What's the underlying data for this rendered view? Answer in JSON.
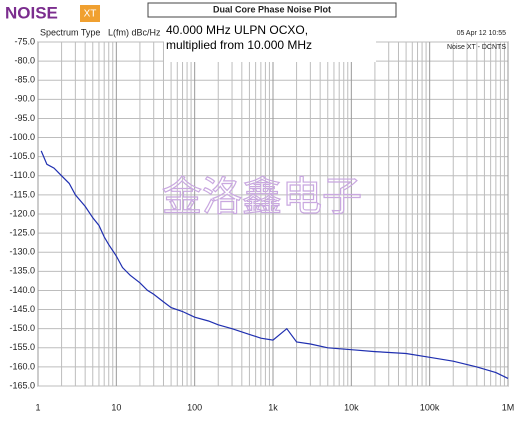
{
  "logo": {
    "name": "NOISE",
    "badge": "XT"
  },
  "watermark": "金洛鑫电子",
  "chart_data": {
    "type": "line",
    "title": "Dual Core Phase Noise Plot",
    "header_left": "Spectrum Type",
    "y_label": "L(fm) dBc/Hz",
    "annotation": [
      "40.000 MHz ULPN OCXO,",
      "multiplied from 10.000 MHz"
    ],
    "date": "05 Apr 12    10:55",
    "instrument": "Noise XT - DCNTS",
    "log_x": true,
    "grid": true,
    "xlim": [
      1,
      1000000
    ],
    "xticks": [
      1,
      10,
      100,
      {
        "value": 1000,
        "label": "1k"
      },
      {
        "value": 10000,
        "label": "10k"
      },
      {
        "value": 100000,
        "label": "100k"
      },
      {
        "value": 1000000,
        "label": "1M"
      }
    ],
    "ylim": [
      -75,
      -165
    ],
    "yticks": [
      {
        "value": -75,
        "label": "-75.0"
      },
      {
        "value": -80,
        "label": "-80.0"
      },
      {
        "value": -85,
        "label": "-85.0"
      },
      {
        "value": -90,
        "label": "-90.0"
      },
      {
        "value": -95,
        "label": "-95.0"
      },
      {
        "value": -100,
        "label": "-100.0"
      },
      {
        "value": -105,
        "label": "-105.0"
      },
      {
        "value": -110,
        "label": "-110.0"
      },
      {
        "value": -115,
        "label": "-115.0"
      },
      {
        "value": -120,
        "label": "-120.0"
      },
      {
        "value": -125,
        "label": "-125.0"
      },
      {
        "value": -130,
        "label": "-130.0"
      },
      {
        "value": -135,
        "label": "-135.0"
      },
      {
        "value": -140,
        "label": "-140.0"
      },
      {
        "value": -145,
        "label": "-145.0"
      },
      {
        "value": -150,
        "label": "-150.0"
      },
      {
        "value": -155,
        "label": "-155.0"
      },
      {
        "value": -160,
        "label": "-160.0"
      },
      {
        "value": -165,
        "label": "-165.0"
      }
    ],
    "x": [
      1.1,
      1.3,
      1.6,
      2,
      2.5,
      3,
      4,
      5,
      6,
      7,
      8,
      10,
      12,
      15,
      20,
      25,
      30,
      40,
      50,
      70,
      100,
      150,
      200,
      300,
      500,
      700,
      1000,
      1500,
      2000,
      3000,
      5000,
      10000,
      20000,
      50000,
      100000,
      200000,
      400000,
      700000,
      1000000
    ],
    "series": [
      {
        "name": "Phase noise",
        "color": "#1f2fb0",
        "values": [
          -103.5,
          -107,
          -108,
          -110,
          -112,
          -115,
          -118,
          -121,
          -123,
          -126,
          -128,
          -131,
          -134,
          -136,
          -138,
          -140,
          -141,
          -143,
          -144.5,
          -145.5,
          -147,
          -148,
          -149,
          -150,
          -151.5,
          -152.5,
          -153,
          -150,
          -153.5,
          -154,
          -155,
          -155.5,
          -156,
          -156.5,
          -157.5,
          -158.5,
          -160,
          -161.5,
          -163
        ]
      }
    ]
  }
}
